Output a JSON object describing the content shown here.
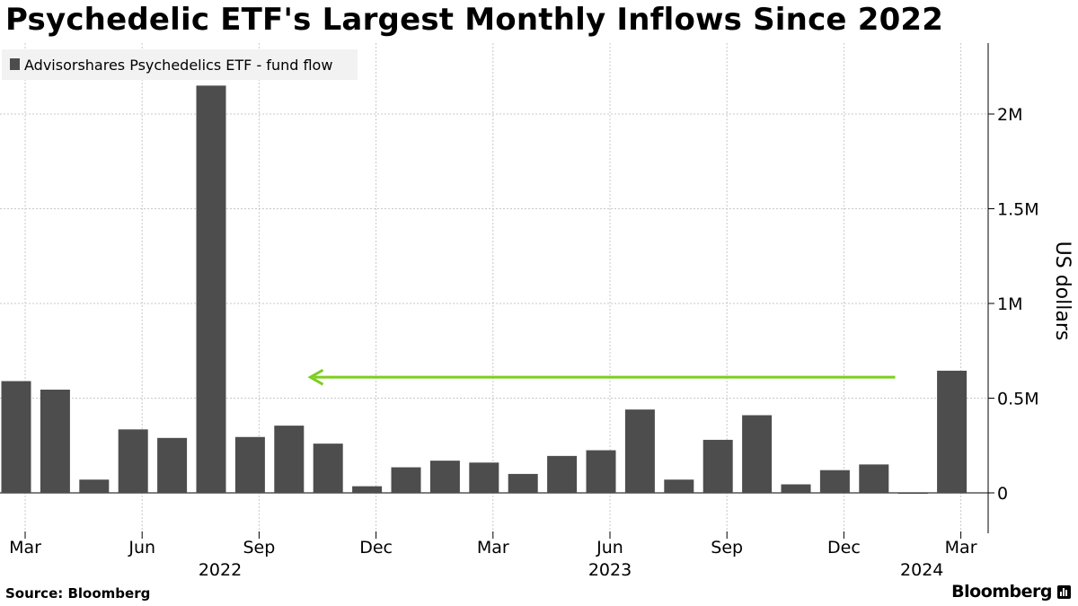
{
  "title": "Psychedelic ETF's Largest Monthly Inflows Since 2022",
  "source": "Source:  Bloomberg",
  "brand": "Bloomberg",
  "colors": {
    "bar": "#4d4d4d",
    "arrow": "#7dce1e",
    "grid": "#c8c8c8",
    "legend_bg": "#f2f2f2"
  },
  "chart_data": {
    "type": "bar",
    "title": "Psychedelic ETF's Largest Monthly Inflows Since 2022",
    "legend": [
      "Advisorshares Psychedelics ETF - fund flow"
    ],
    "ylabel": "US dollars",
    "xlabel": "",
    "ylim": [
      -180000,
      2350000
    ],
    "y_ticks": [
      0,
      500000,
      1000000,
      1500000,
      2000000
    ],
    "y_tick_labels": [
      "0",
      "0.5M",
      "1M",
      "1.5M",
      "2M"
    ],
    "categories": [
      "2022-03",
      "2022-04",
      "2022-05",
      "2022-06",
      "2022-07",
      "2022-08",
      "2022-09",
      "2022-10",
      "2022-11",
      "2022-12",
      "2023-01",
      "2023-02",
      "2023-03",
      "2023-04",
      "2023-05",
      "2023-06",
      "2023-07",
      "2023-08",
      "2023-09",
      "2023-10",
      "2023-11",
      "2023-12",
      "2024-01",
      "2024-02",
      "2024-03"
    ],
    "series": [
      {
        "name": "Advisorshares Psychedelics ETF - fund flow",
        "values": [
          590000,
          545000,
          70000,
          335000,
          290000,
          2150000,
          295000,
          355000,
          260000,
          35000,
          135000,
          170000,
          160000,
          100000,
          195000,
          225000,
          440000,
          70000,
          280000,
          410000,
          45000,
          120000,
          150000,
          -5000,
          645000
        ]
      }
    ],
    "x_tick_labels": [
      {
        "index": 0,
        "label": "Mar"
      },
      {
        "index": 3,
        "label": "Jun"
      },
      {
        "index": 6,
        "label": "Sep"
      },
      {
        "index": 9,
        "label": "Dec"
      },
      {
        "index": 12,
        "label": "Mar"
      },
      {
        "index": 15,
        "label": "Jun"
      },
      {
        "index": 18,
        "label": "Sep"
      },
      {
        "index": 21,
        "label": "Dec"
      },
      {
        "index": 24,
        "label": "Mar"
      }
    ],
    "year_labels": [
      {
        "index": 5,
        "label": "2022"
      },
      {
        "index": 15,
        "label": "2023"
      },
      {
        "index": 23,
        "label": "2024"
      }
    ],
    "annotations": [
      {
        "type": "arrow",
        "description": "horizontal arrow pointing left at the latest inflow level",
        "from_index": 22.5,
        "to_index": 7.5,
        "y": 620000
      }
    ]
  }
}
